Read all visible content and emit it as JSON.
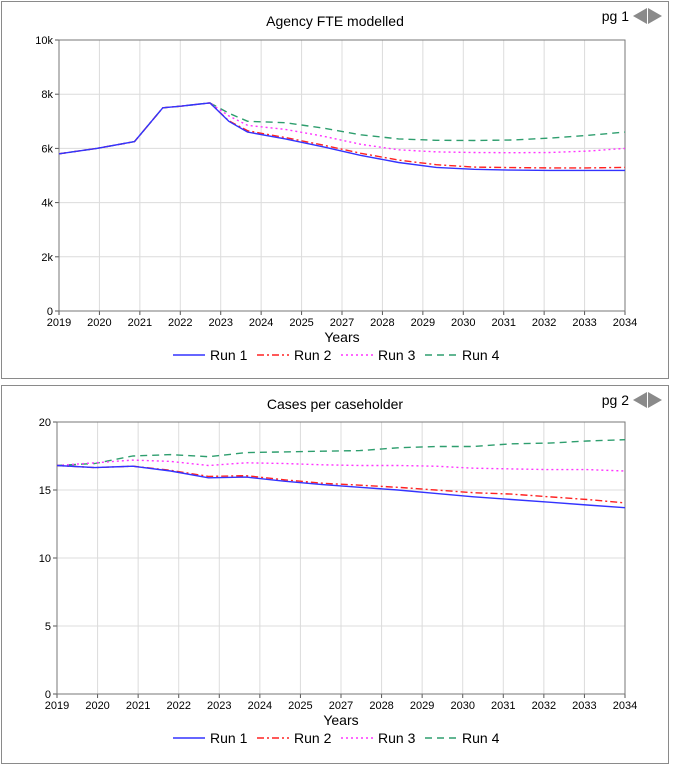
{
  "charts": [
    {
      "page_label": "pg 1",
      "chart_data": {
        "type": "line",
        "title": "Agency FTE modelled",
        "xlabel": "Years",
        "ylabel": "",
        "x_tick_labels": [
          "2019",
          "2020",
          "2021",
          "2022",
          "2023",
          "2024",
          "2025",
          "2027",
          "2028",
          "2029",
          "2030",
          "2031",
          "2032",
          "2033",
          "2034"
        ],
        "y_tick_labels": [
          "0",
          "2k",
          "4k",
          "6k",
          "8k",
          "10k"
        ],
        "ylim": [
          0,
          10000
        ],
        "grid": true,
        "legend_position": "bottom",
        "x": [
          2019,
          2020,
          2021,
          2021.75,
          2022.25,
          2022.5,
          2023,
          2023.5,
          2024,
          2025,
          2026,
          2027,
          2028,
          2029,
          2030,
          2031,
          2032,
          2033,
          2034
        ],
        "series": [
          {
            "name": "Run 1",
            "color": "#3333ff",
            "dash": "solid",
            "values": [
              5800,
              6000,
              6250,
              7500,
              7560,
              7600,
              7680,
              7000,
              6600,
              6350,
              6060,
              5740,
              5480,
              5300,
              5230,
              5200,
              5190,
              5190,
              5190
            ]
          },
          {
            "name": "Run 2",
            "color": "#ff2222",
            "dash": "dashdot",
            "values": [
              5800,
              6000,
              6250,
              7500,
              7560,
              7600,
              7680,
              7020,
              6650,
              6400,
              6120,
              5820,
              5570,
              5400,
              5310,
              5290,
              5280,
              5280,
              5300
            ]
          },
          {
            "name": "Run 3",
            "color": "#ff33ff",
            "dash": "dotted",
            "values": [
              5800,
              6000,
              6250,
              7500,
              7560,
              7600,
              7680,
              7200,
              6850,
              6700,
              6450,
              6150,
              5950,
              5870,
              5850,
              5840,
              5850,
              5900,
              6000
            ]
          },
          {
            "name": "Run 4",
            "color": "#2e9e6e",
            "dash": "dashed",
            "values": [
              5800,
              6000,
              6250,
              7500,
              7560,
              7600,
              7680,
              7300,
              7000,
              6950,
              6750,
              6500,
              6350,
              6300,
              6290,
              6310,
              6380,
              6480,
              6600
            ]
          }
        ]
      }
    },
    {
      "page_label": "pg 2",
      "chart_data": {
        "type": "line",
        "title": "Cases per caseholder",
        "xlabel": "Years",
        "ylabel": "",
        "x_tick_labels": [
          "2019",
          "2020",
          "2021",
          "2022",
          "2023",
          "2024",
          "2025",
          "2027",
          "2028",
          "2029",
          "2030",
          "2031",
          "2032",
          "2033",
          "2034"
        ],
        "y_tick_labels": [
          "0",
          "5",
          "10",
          "15",
          "20"
        ],
        "ylim": [
          0,
          20
        ],
        "grid": true,
        "legend_position": "bottom",
        "x": [
          2019,
          2020,
          2021,
          2022,
          2023,
          2024,
          2025,
          2026,
          2027,
          2028,
          2029,
          2030,
          2031,
          2032,
          2033,
          2034
        ],
        "series": [
          {
            "name": "Run 1",
            "color": "#3333ff",
            "dash": "solid",
            "values": [
              16.8,
              16.65,
              16.75,
              16.4,
              15.9,
              15.95,
              15.65,
              15.4,
              15.2,
              15.0,
              14.75,
              14.5,
              14.3,
              14.1,
              13.9,
              13.7
            ]
          },
          {
            "name": "Run 2",
            "color": "#ff2222",
            "dash": "dashdot",
            "values": [
              16.8,
              16.65,
              16.75,
              16.45,
              16.0,
              16.05,
              15.75,
              15.5,
              15.35,
              15.2,
              15.0,
              14.8,
              14.7,
              14.5,
              14.3,
              14.05
            ]
          },
          {
            "name": "Run 3",
            "color": "#ff33ff",
            "dash": "dotted",
            "values": [
              16.8,
              17.0,
              17.2,
              17.1,
              16.8,
              17.0,
              16.95,
              16.85,
              16.8,
              16.8,
              16.75,
              16.6,
              16.55,
              16.5,
              16.5,
              16.4
            ]
          },
          {
            "name": "Run 4",
            "color": "#2e9e6e",
            "dash": "dashed",
            "values": [
              16.8,
              16.95,
              17.5,
              17.6,
              17.45,
              17.75,
              17.8,
              17.85,
              17.9,
              18.1,
              18.2,
              18.2,
              18.4,
              18.45,
              18.6,
              18.7
            ]
          }
        ]
      }
    }
  ]
}
